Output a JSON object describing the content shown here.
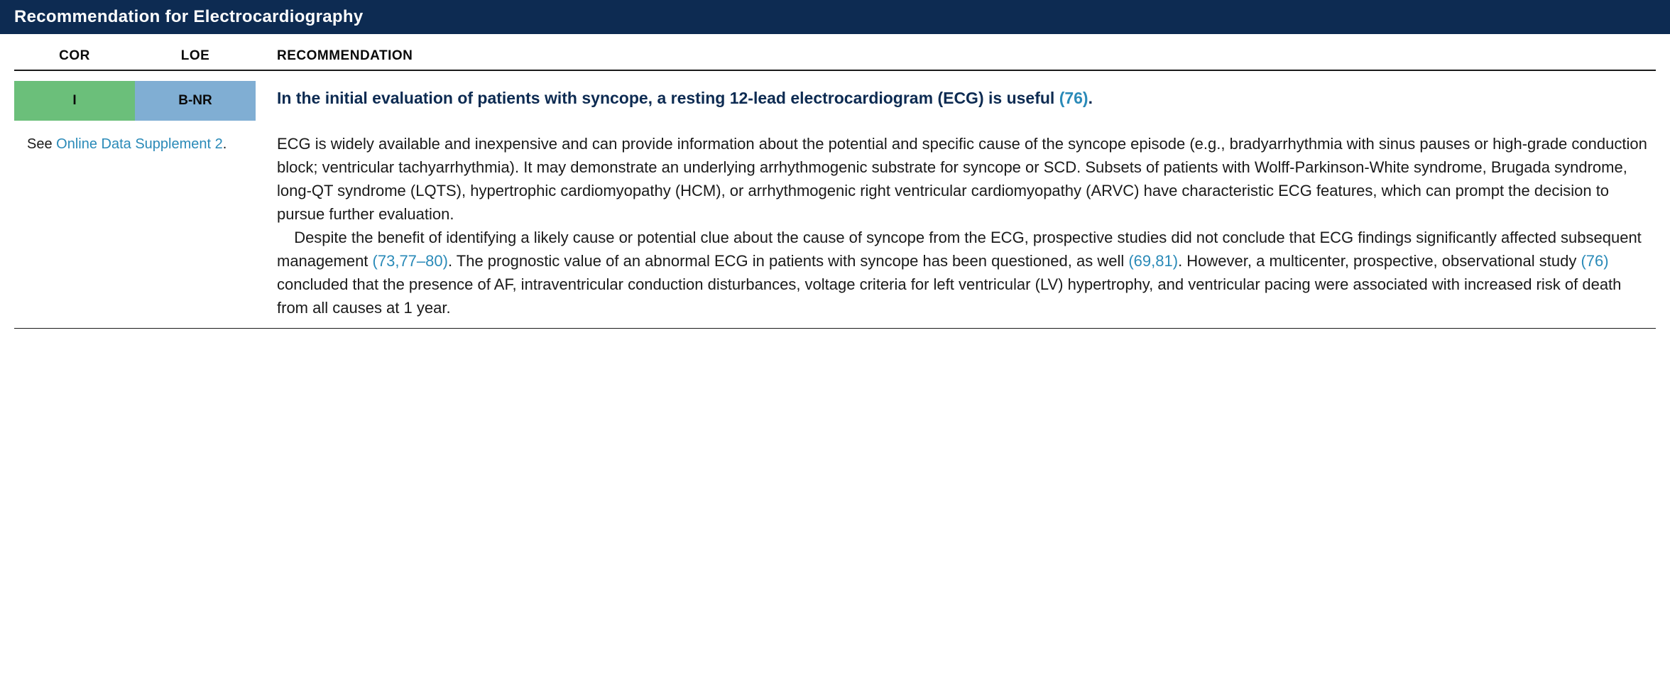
{
  "title": "Recommendation for Electrocardiography",
  "headers": {
    "cor": "COR",
    "loe": "LOE",
    "rec": "RECOMMENDATION"
  },
  "badges": {
    "cor": {
      "label": "I",
      "bg_color": "#6bbf7a",
      "text_color": "#0a0a0a"
    },
    "loe": {
      "label": "B-NR",
      "bg_color": "#80aed3",
      "text_color": "#0a0a0a"
    }
  },
  "supplement": {
    "prefix": "See ",
    "link_text": "Online Data Supplement 2",
    "suffix": "."
  },
  "recommendation": {
    "headline_pre": "In the initial evaluation of patients with syncope, a resting 12-lead electrocardiogram (ECG) is useful ",
    "headline_ref": "(76)",
    "headline_post": ".",
    "para1": "ECG is widely available and inexpensive and can provide information about the potential and specific cause of the syncope episode (e.g., bradyarrhythmia with sinus pauses or high-grade conduction block; ventricular tachyarrhythmia). It may demonstrate an underlying arrhythmogenic substrate for syncope or SCD. Subsets of patients with Wolff-Parkinson-White syndrome, Brugada syndrome, long-QT syndrome (LQTS), hypertrophic cardiomyopathy (HCM), or arrhythmogenic right ventricular cardiomyopathy (ARVC) have characteristic ECG features, which can prompt the decision to pursue further evaluation.",
    "para2_a": "Despite the benefit of identifying a likely cause or potential clue about the cause of syncope from the ECG, prospective studies did not conclude that ECG findings significantly affected subsequent management ",
    "ref2": "(73,77–80)",
    "para2_b": ". The prognostic value of an abnormal ECG in patients with syncope has been questioned, as well ",
    "ref3": "(69,81)",
    "para2_c": ". However, a multicenter, prospective, observational study ",
    "ref4": "(76)",
    "para2_d": " concluded that the presence of AF, intraventricular conduction disturbances, voltage criteria for left ventricular (LV) hypertrophy, and ventricular pacing were associated with increased risk of death from all causes at 1 year."
  },
  "colors": {
    "title_bg": "#0d2b52",
    "link": "#2a8ab8",
    "headline": "#0d2b52"
  }
}
